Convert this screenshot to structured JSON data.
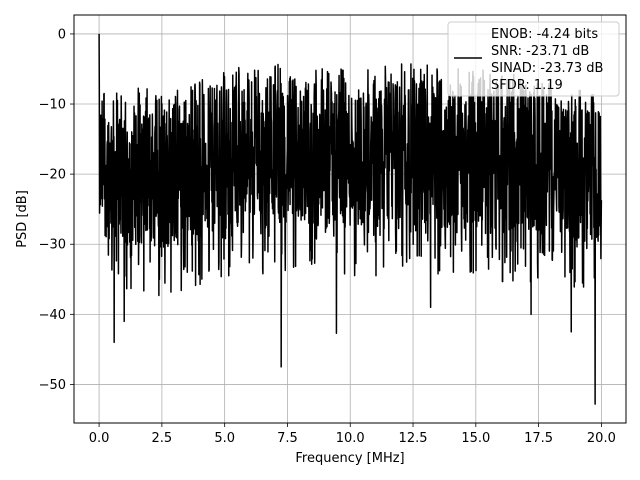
{
  "chart_data": {
    "type": "line",
    "title": "",
    "xlabel": "Frequency [MHz]",
    "ylabel": "PSD [dB]",
    "xlim": [
      -0.999,
      20.98
    ],
    "ylim": [
      -55.5,
      2.7
    ],
    "xticks": [
      0.0,
      2.5,
      5.0,
      7.5,
      10.0,
      12.5,
      15.0,
      17.5,
      20.0
    ],
    "xtick_labels": [
      "0.0",
      "2.5",
      "5.0",
      "7.5",
      "10.0",
      "12.5",
      "15.0",
      "17.5",
      "20.0"
    ],
    "yticks": [
      0,
      -10,
      -20,
      -30,
      -40,
      -50
    ],
    "ytick_labels": [
      "0",
      "−10",
      "−20",
      "−30",
      "−40",
      "−50"
    ],
    "grid": true,
    "legend_placement": "top-right",
    "legend_entries": [
      "ENOB: -4.24 bits",
      "SNR: -23.71 dB",
      "SINAD: -23.73 dB",
      "SFDR: 1.19"
    ],
    "series": [
      {
        "color": "#000000",
        "x_range": [
          0,
          20
        ],
        "points": 2000,
        "peak": {
          "x": 0.0,
          "y": 0.0
        },
        "typical_range_db": [
          -28,
          -10
        ],
        "band_envelope": [
          {
            "x": 0.0,
            "top": -9,
            "bottom": -29
          },
          {
            "x": 2.5,
            "top": -10,
            "bottom": -31
          },
          {
            "x": 5.0,
            "top": -7,
            "bottom": -28
          },
          {
            "x": 7.5,
            "top": -6,
            "bottom": -27
          },
          {
            "x": 10.0,
            "top": -7,
            "bottom": -28
          },
          {
            "x": 12.5,
            "top": -6,
            "bottom": -27
          },
          {
            "x": 15.0,
            "top": -7,
            "bottom": -28
          },
          {
            "x": 17.5,
            "top": -8,
            "bottom": -29
          },
          {
            "x": 20.0,
            "top": -11,
            "bottom": -30
          }
        ],
        "notable_dips": [
          {
            "x": 0.6,
            "y": -44
          },
          {
            "x": 1.0,
            "y": -41
          },
          {
            "x": 7.25,
            "y": -47.5
          },
          {
            "x": 9.45,
            "y": -42.7
          },
          {
            "x": 13.2,
            "y": -39
          },
          {
            "x": 17.2,
            "y": -40
          },
          {
            "x": 18.8,
            "y": -42.5
          },
          {
            "x": 19.75,
            "y": -52.8
          }
        ]
      }
    ]
  }
}
